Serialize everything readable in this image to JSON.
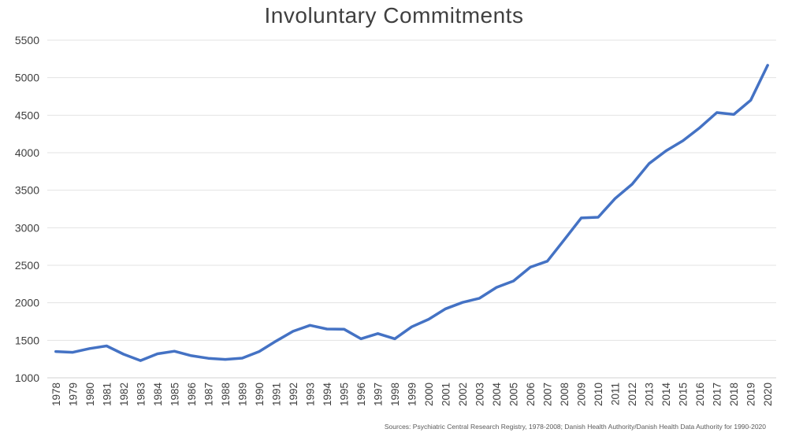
{
  "chart_data": {
    "type": "line",
    "title": "Involuntary Commitments",
    "xlabel": "",
    "ylabel": "",
    "ylim": [
      1000,
      5500
    ],
    "yticks": [
      1000,
      1500,
      2000,
      2500,
      3000,
      3500,
      4000,
      4500,
      5000,
      5500
    ],
    "grid": true,
    "legend": "none",
    "color": "#4472C4",
    "categories": [
      "1978",
      "1979",
      "1980",
      "1981",
      "1982",
      "1983",
      "1984",
      "1985",
      "1986",
      "1987",
      "1988",
      "1989",
      "1990",
      "1991",
      "1992",
      "1993",
      "1994",
      "1995",
      "1996",
      "1997",
      "1998",
      "1999",
      "2000",
      "2001",
      "2002",
      "2003",
      "2004",
      "2005",
      "2006",
      "2007",
      "2008",
      "2009",
      "2010",
      "2011",
      "2012",
      "2013",
      "2014",
      "2015",
      "2016",
      "2017",
      "2018",
      "2019",
      "2020"
    ],
    "values": [
      1350,
      1340,
      1390,
      1425,
      1315,
      1230,
      1320,
      1355,
      1295,
      1260,
      1245,
      1262,
      1350,
      1490,
      1620,
      1700,
      1650,
      1648,
      1520,
      1590,
      1520,
      1680,
      1780,
      1920,
      2005,
      2060,
      2205,
      2290,
      2475,
      2555,
      2840,
      3130,
      3140,
      3390,
      3580,
      3855,
      4025,
      4160,
      4335,
      4535,
      4510,
      4700,
      5165
    ],
    "source": "Sources: Psychiatric Central Research Registry, 1978-2008; Danish Health Authority/Danish  Health Data Authority  for 1990-2020"
  }
}
